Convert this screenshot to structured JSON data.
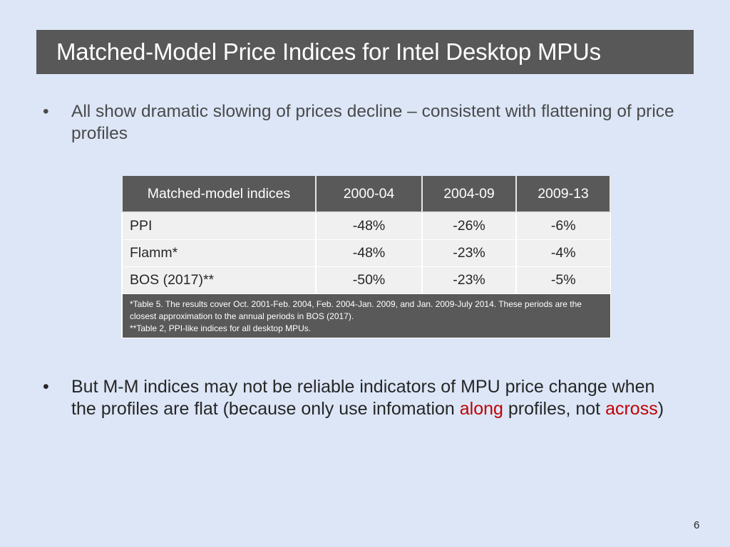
{
  "slide": {
    "title": "Matched-Model Price Indices for Intel Desktop MPUs",
    "bullet_marker": "•",
    "bullet1": "All show dramatic slowing of prices decline – consistent with flattening of price profiles",
    "bullet2": {
      "part1": "But M-M indices may not be reliable indicators of MPU price change when the profiles are flat (because only use infomation ",
      "along": "along",
      "part2": " profiles, not ",
      "across": "across",
      "part3": ")"
    },
    "page_number": "6"
  },
  "table": {
    "headers": [
      "Matched-model indices",
      "2000-04",
      "2004-09",
      "2009-13"
    ],
    "rows": [
      [
        "PPI",
        "-48%",
        "-26%",
        "-6%"
      ],
      [
        "Flamm*",
        "-48%",
        "-23%",
        "-4%"
      ],
      [
        "BOS (2017)**",
        "-50%",
        "-23%",
        "-5%"
      ]
    ],
    "note_line1": "*Table 5.  The results cover Oct. 2001-Feb. 2004, Feb. 2004-Jan. 2009, and Jan. 2009-July 2014.  These periods are the closest approximation to the annual periods in BOS (2017).",
    "note_line2": "**Table 2, PPI-like indices for all desktop MPUs."
  },
  "colors": {
    "background": "#dce6f7",
    "title_bar": "#585858",
    "highlight": "#c00000"
  }
}
